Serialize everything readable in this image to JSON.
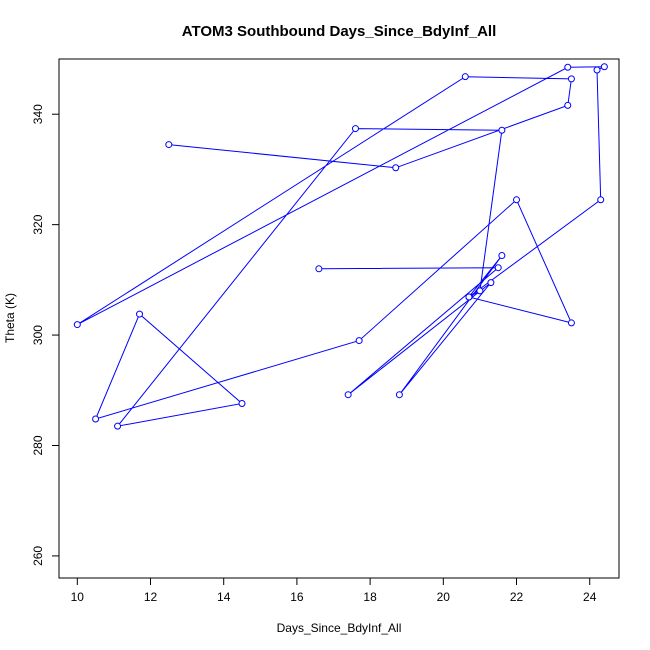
{
  "chart_data": {
    "type": "line",
    "title": "ATOM3 Southbound Days_Since_BdyInf_All",
    "xlabel": "Days_Since_BdyInf_All",
    "ylabel": "Theta (K)",
    "xlim": [
      9.5,
      24.8
    ],
    "ylim": [
      256,
      350
    ],
    "xticks": [
      10,
      12,
      14,
      16,
      18,
      20,
      22,
      24
    ],
    "yticks": [
      260,
      280,
      300,
      320,
      340
    ],
    "grid": false,
    "line_color": "#0000ff",
    "series": [
      {
        "markers": "open-circle",
        "x": [
          16.6,
          21.5,
          17.4,
          21.3,
          18.8,
          21.6,
          20.7,
          23.5,
          22.0,
          17.7,
          10.5,
          11.7,
          14.5,
          11.1,
          17.6,
          21.6,
          21.0,
          20.7,
          24.3,
          24.2,
          24.4,
          23.4,
          10.0,
          20.6,
          23.5,
          23.4,
          18.7,
          12.5
        ],
        "y": [
          312.0,
          312.2,
          289.2,
          309.5,
          289.2,
          314.4,
          306.9,
          302.2,
          324.5,
          299.0,
          284.8,
          303.8,
          287.6,
          283.5,
          337.4,
          337.1,
          308.0,
          306.9,
          324.5,
          348.0,
          348.6,
          348.5,
          301.9,
          346.8,
          346.4,
          341.6,
          330.3,
          334.5
        ]
      }
    ]
  }
}
